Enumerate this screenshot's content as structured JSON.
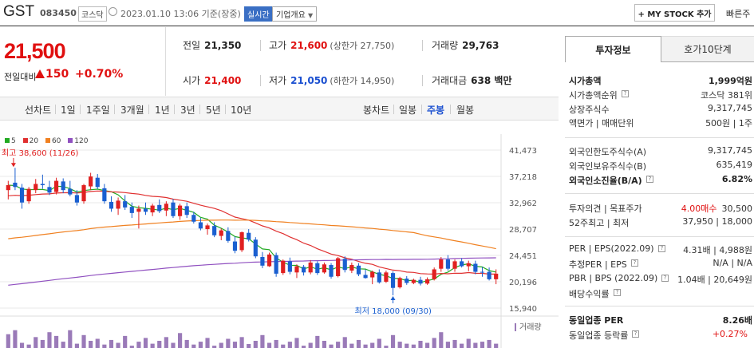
{
  "header": {
    "name": "GST",
    "code": "083450",
    "market": "코스닥",
    "date": "2023.01.10 13:06 기준(장중)",
    "realtime": "실시간",
    "company_info": "기업개요",
    "mystock": "+ MY STOCK 추가",
    "fast": "빠른주"
  },
  "price": {
    "current": "21,500",
    "change_label": "전일대비",
    "change_value": "150",
    "change_pct": "+0.70%"
  },
  "quotes": {
    "prev_label": "전일",
    "prev": "21,350",
    "high_label": "고가",
    "high": "21,600",
    "upper": "(상한가 27,750)",
    "volume_label": "거래량",
    "volume": "29,763",
    "open_label": "시가",
    "open": "21,400",
    "low_label": "저가",
    "low": "21,050",
    "lower": "(하한가 14,950)",
    "amount_label": "거래대금",
    "amount": "638 백만"
  },
  "toolbar": {
    "line_chart": "선차트",
    "periods": [
      "1일",
      "1주일",
      "3개월",
      "1년",
      "3년",
      "5년",
      "10년"
    ],
    "candle_chart": "봉차트",
    "candle_periods": [
      "일봉",
      "주봉",
      "월봉"
    ],
    "active_candle": "주봉"
  },
  "chart_data": {
    "type": "candlestick",
    "legend": [
      {
        "name": "5",
        "color": "#22aa22"
      },
      {
        "name": "20",
        "color": "#e03030"
      },
      {
        "name": "60",
        "color": "#f08020"
      },
      {
        "name": "120",
        "color": "#9050c0"
      }
    ],
    "y_ticks": [
      "41,473",
      "37,218",
      "32,962",
      "28,707",
      "24,451",
      "20,196",
      "15,940"
    ],
    "ylim": [
      15940,
      41473
    ],
    "annotation_high": "최고 38,600 (11/26)",
    "annotation_low": "최저 18,000 (09/30)",
    "volume_label": "거래량",
    "candles": [
      [
        35000,
        36500,
        33500,
        35800
      ],
      [
        36200,
        38600,
        35000,
        35500
      ],
      [
        35400,
        36000,
        32000,
        33000
      ],
      [
        33200,
        35500,
        32800,
        35200
      ],
      [
        35000,
        36800,
        34500,
        36000
      ],
      [
        36000,
        37500,
        35200,
        35800
      ],
      [
        35500,
        36500,
        34200,
        34600
      ],
      [
        34700,
        37000,
        34300,
        36500
      ],
      [
        36400,
        36900,
        34500,
        35000
      ],
      [
        35200,
        36500,
        34000,
        34300
      ],
      [
        34200,
        35000,
        32500,
        33000
      ],
      [
        33200,
        36000,
        32800,
        35800
      ],
      [
        35600,
        37800,
        35000,
        37200
      ],
      [
        37000,
        37600,
        35200,
        35500
      ],
      [
        35300,
        36000,
        32800,
        33200
      ],
      [
        33100,
        34000,
        31500,
        32000
      ],
      [
        32000,
        33800,
        31000,
        33300
      ],
      [
        33200,
        34200,
        31800,
        32200
      ],
      [
        32300,
        33000,
        30500,
        31300
      ],
      [
        31500,
        32500,
        28800,
        32000
      ],
      [
        32000,
        33000,
        31000,
        31500
      ],
      [
        31400,
        32800,
        30800,
        32500
      ],
      [
        32600,
        33500,
        31300,
        31600
      ],
      [
        31700,
        33200,
        30800,
        32800
      ],
      [
        33000,
        33600,
        30500,
        30800
      ],
      [
        30800,
        32800,
        30200,
        32500
      ],
      [
        32400,
        33000,
        30500,
        31000
      ],
      [
        31000,
        31500,
        29600,
        29900
      ],
      [
        29800,
        30500,
        28500,
        28800
      ],
      [
        28700,
        29600,
        27800,
        29300
      ],
      [
        29200,
        29800,
        27400,
        27700
      ],
      [
        27600,
        28800,
        26900,
        28500
      ],
      [
        28400,
        29000,
        26500,
        26800
      ],
      [
        26700,
        27500,
        24800,
        25200
      ],
      [
        25300,
        28300,
        25000,
        28200
      ],
      [
        28100,
        28700,
        26700,
        27000
      ],
      [
        27000,
        27400,
        24000,
        24300
      ],
      [
        24200,
        25000,
        22400,
        22800
      ],
      [
        22700,
        24900,
        22600,
        24600
      ],
      [
        24500,
        24900,
        21000,
        21500
      ],
      [
        21600,
        23800,
        21300,
        23600
      ],
      [
        23500,
        24100,
        21400,
        21800
      ],
      [
        21700,
        23000,
        20800,
        22700
      ],
      [
        22600,
        22900,
        21200,
        21700
      ],
      [
        21700,
        23700,
        21400,
        23300
      ],
      [
        23200,
        23500,
        21300,
        21600
      ],
      [
        21700,
        23300,
        21500,
        23000
      ],
      [
        22900,
        23200,
        20700,
        21000
      ],
      [
        21100,
        24200,
        20900,
        24000
      ],
      [
        23900,
        24300,
        21700,
        22100
      ],
      [
        22000,
        23300,
        21600,
        22900
      ],
      [
        22800,
        23200,
        21100,
        21400
      ],
      [
        21300,
        22200,
        20700,
        20800
      ],
      [
        20900,
        22000,
        19800,
        21800
      ],
      [
        21700,
        22200,
        19900,
        20100
      ],
      [
        20200,
        22000,
        20000,
        21700
      ],
      [
        21600,
        21900,
        18000,
        19200
      ],
      [
        19300,
        21000,
        19100,
        20800
      ],
      [
        20700,
        21100,
        19700,
        20000
      ],
      [
        20000,
        20700,
        19800,
        20500
      ],
      [
        20500,
        21000,
        19600,
        19900
      ],
      [
        19900,
        20900,
        19700,
        20600
      ],
      [
        20600,
        22500,
        20400,
        22200
      ],
      [
        22300,
        24200,
        21800,
        23800
      ],
      [
        23800,
        24500,
        22000,
        22300
      ],
      [
        22300,
        23800,
        21800,
        23500
      ],
      [
        23500,
        24000,
        22500,
        22700
      ],
      [
        22700,
        23600,
        21900,
        23200
      ],
      [
        23100,
        23600,
        21400,
        21800
      ],
      [
        21800,
        22600,
        21000,
        21700
      ],
      [
        21800,
        22500,
        20400,
        20600
      ],
      [
        20600,
        22200,
        19800,
        21500
      ]
    ],
    "volumes": [
      0.48,
      0.62,
      0.18,
      0.12,
      0.38,
      0.28,
      0.55,
      0.42,
      0.22,
      0.62,
      0.15,
      0.45,
      0.25,
      0.32,
      0.12,
      0.28,
      0.18,
      0.42,
      0.08,
      0.22,
      0.35,
      0.15,
      0.25,
      0.38,
      0.18,
      0.52,
      0.28,
      0.12,
      0.22,
      0.35,
      0.08,
      0.18,
      0.32,
      0.22,
      0.38,
      0.14,
      0.25,
      0.45,
      0.18,
      0.28,
      0.12,
      0.22,
      0.35,
      0.08,
      0.18,
      0.42,
      0.25,
      0.12,
      0.22,
      0.38,
      0.15,
      0.28,
      0.12,
      0.18,
      0.32,
      0.08,
      0.45,
      0.22,
      0.15,
      0.12,
      0.25,
      0.18,
      0.35,
      0.55,
      0.22,
      0.28,
      0.15,
      0.32,
      0.18,
      0.22,
      0.28,
      0.15
    ]
  },
  "panel": {
    "tab1": "투자정보",
    "tab2": "호가10단계",
    "rows": [
      {
        "k": "시가총액",
        "v": "1,999억원",
        "b": true
      },
      {
        "k": "시가총액순위",
        "v": "코스닥 381위",
        "i": true
      },
      {
        "k": "상장주식수",
        "v": "9,317,745"
      },
      {
        "k": "액면가 | 매매단위",
        "v": "500원 | 1주"
      },
      {
        "k": "외국인한도주식수(A)",
        "v": "9,317,745"
      },
      {
        "k": "외국인보유주식수(B)",
        "v": "635,419"
      },
      {
        "k": "외국인소진율(B/A)",
        "v": "6.82%",
        "b": true,
        "i": true
      },
      {
        "k": "투자의견 | 목표주가",
        "v_red": "4.00매수",
        "v": "30,500"
      },
      {
        "k": "52주최고 | 최저",
        "v": "37,950 | 18,000"
      },
      {
        "k": "PER | EPS(2022.09)",
        "v": "4.31배 | 4,988원",
        "i": true
      },
      {
        "k": "추정PER | EPS",
        "v": "N/A | N/A",
        "i": true
      },
      {
        "k": "PBR | BPS (2022.09)",
        "v": "1.04배 | 20,649원",
        "i": true
      },
      {
        "k": "배당수익률",
        "v": "",
        "i": true
      },
      {
        "k": "동일업종 PER",
        "v": "8.26배",
        "b": true
      },
      {
        "k": "동일업종 등락률",
        "v_red": "+0.27%",
        "i": true
      }
    ]
  }
}
